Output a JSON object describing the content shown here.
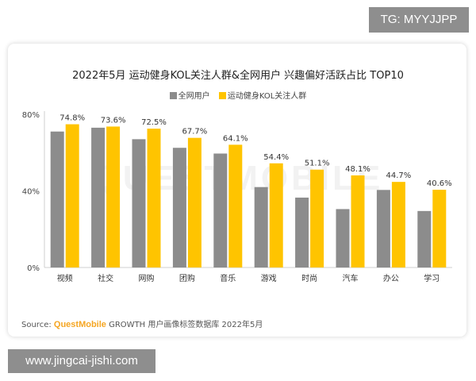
{
  "badge_top": "TG: MYYJJPP",
  "badge_bottom": "www.jingcai-jishi.com",
  "source": {
    "prefix": "Source:",
    "brand": "QuestMobile",
    "text": "GROWTH 用户画像标签数据库 2022年5月"
  },
  "colors": {
    "series_a": "#8c8c8c",
    "series_b": "#ffc400"
  },
  "chart_data": {
    "type": "bar",
    "title": "2022年5月 运动健身KOL关注人群&全网用户 兴趣偏好活跃占比 TOP10",
    "categories": [
      "视频",
      "社交",
      "网购",
      "团购",
      "音乐",
      "游戏",
      "时尚",
      "汽车",
      "办公",
      "学习"
    ],
    "series": [
      {
        "name": "全网用户",
        "values": [
          71.0,
          73.0,
          67.0,
          62.5,
          59.5,
          42.0,
          36.5,
          30.5,
          40.5,
          29.5
        ]
      },
      {
        "name": "运动健身KOL关注人群",
        "values": [
          74.8,
          73.6,
          72.5,
          67.7,
          64.1,
          54.4,
          51.1,
          48.1,
          44.7,
          40.6
        ]
      }
    ],
    "data_labels": [
      "74.8%",
      "73.6%",
      "72.5%",
      "67.7%",
      "64.1%",
      "54.4%",
      "51.1%",
      "48.1%",
      "44.7%",
      "40.6%"
    ],
    "y_ticks": [
      "0%",
      "40%",
      "80%"
    ],
    "ylim": [
      0,
      80
    ],
    "legend_position": "top-center",
    "grid": false
  }
}
